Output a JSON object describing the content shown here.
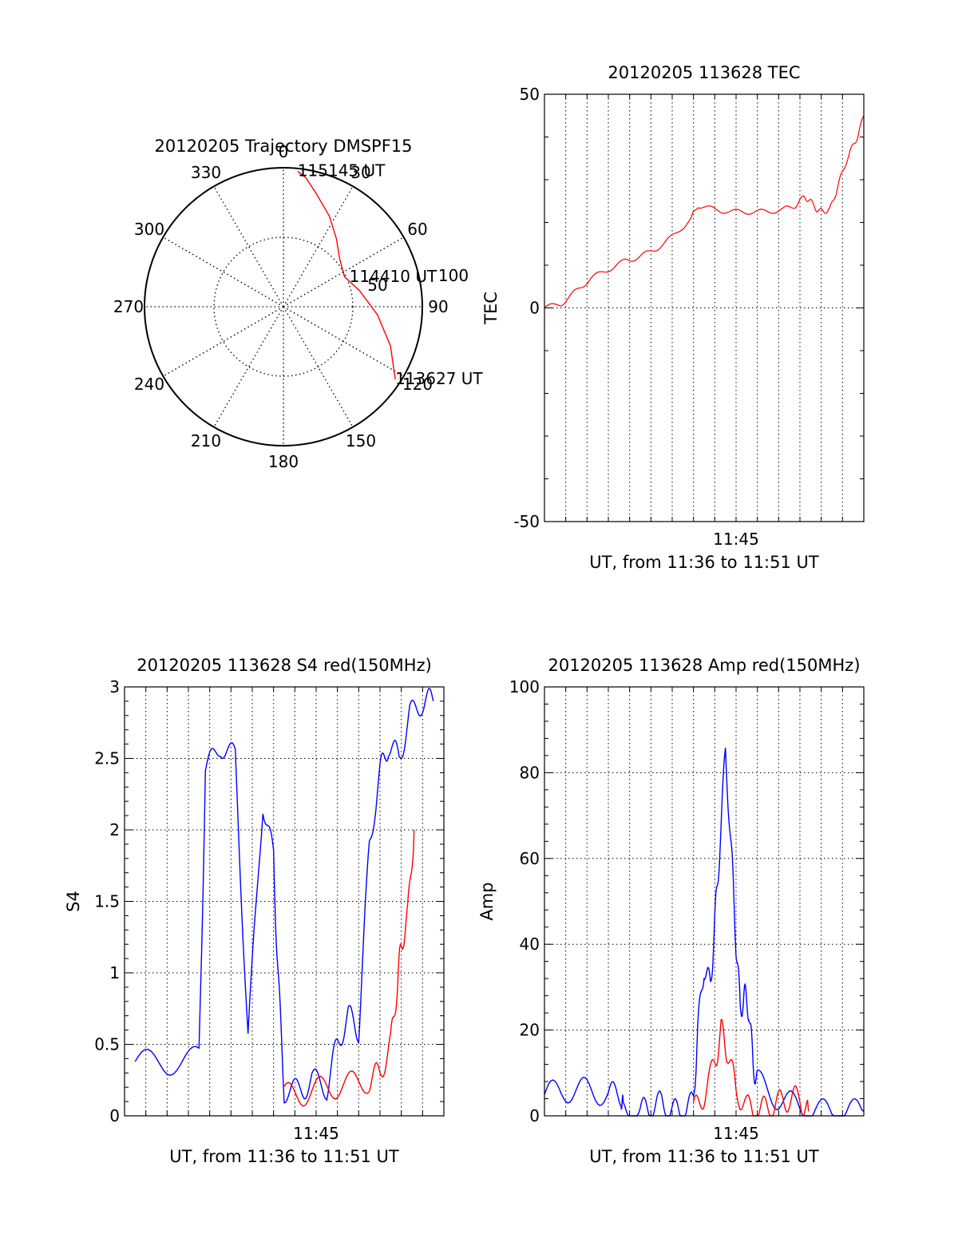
{
  "chart_data": [
    {
      "type": "polar",
      "title": "20120205 Trajectory DMSPF15",
      "azimuth_labels": [
        "0",
        "30",
        "60",
        "90",
        "120",
        "150",
        "180",
        "210",
        "240",
        "270",
        "300",
        "330"
      ],
      "radial_labels": [
        "50",
        "100"
      ],
      "series": [
        {
          "color": "#ff0000",
          "points": [
            {
              "az": 123,
              "el": 4
            },
            {
              "az": 110,
              "el": 18
            },
            {
              "az": 95,
              "el": 32
            },
            {
              "az": 78,
              "el": 44
            },
            {
              "az": 64,
              "el": 51
            },
            {
              "az": 50,
              "el": 47
            },
            {
              "az": 38,
              "el": 38
            },
            {
              "az": 27,
              "el": 27
            },
            {
              "az": 16,
              "el": 15
            },
            {
              "az": 10,
              "el": 6
            },
            {
              "az": 6,
              "el": 2
            }
          ]
        }
      ],
      "annotations": [
        {
          "text": "115145 UT",
          "az": 6,
          "el": 2
        },
        {
          "text": "114410 UT",
          "az": 66,
          "el": 48
        },
        {
          "text": "113627 UT",
          "az": 123,
          "el": 4
        }
      ]
    },
    {
      "type": "line",
      "title": "20120205 113628 TEC",
      "xlabel": "UT, from 11:36 to 11:51 UT",
      "ylabel": "TEC",
      "xlim": [
        0,
        15
      ],
      "ylim": [
        -50,
        50
      ],
      "xticks": [
        {
          "value": 9,
          "label": "11:45"
        }
      ],
      "yticks": [
        -50,
        0,
        50
      ],
      "grid": true,
      "series": [
        {
          "color": "#ff0000",
          "x": [
            0,
            0.8,
            1.5,
            2.2,
            3,
            3.8,
            4.5,
            5.3,
            6.1,
            6.9,
            7.2,
            8,
            8.8,
            9.6,
            10.4,
            11.2,
            11.8,
            12.2,
            12.5,
            12.8,
            13.1,
            13.4,
            13.7,
            14,
            14.4,
            14.7,
            15
          ],
          "y": [
            0,
            1,
            4,
            7,
            9,
            11,
            12,
            14,
            17,
            21,
            24,
            23,
            22.5,
            22.5,
            22.5,
            23,
            24,
            26,
            25,
            23,
            22.5,
            23,
            27,
            32,
            37,
            40,
            45
          ]
        }
      ]
    },
    {
      "type": "line",
      "title": "20120205 113628 S4 red(150MHz)",
      "xlabel": "UT, from 11:36 to 11:51 UT",
      "ylabel": "S4",
      "xlim": [
        0,
        15
      ],
      "ylim": [
        0,
        3
      ],
      "xticks": [
        {
          "value": 9,
          "label": "11:45"
        }
      ],
      "yticks": [
        0,
        0.5,
        1,
        1.5,
        2,
        2.5,
        3
      ],
      "grid": true,
      "series": [
        {
          "color": "#0000ff",
          "x": [
            0.5,
            2,
            3.5,
            3.8,
            4.5,
            5.2,
            5.8,
            6.5,
            7,
            7.2,
            7.5,
            8.2,
            8.8,
            9.5,
            10,
            10.5,
            11,
            11.5,
            12,
            12.4,
            12.9,
            13.4,
            14,
            14.5
          ],
          "y": [
            0.38,
            0.37,
            0.4,
            2.4,
            2.6,
            2.5,
            0.55,
            2.2,
            1.8,
            1.0,
            0.18,
            0.17,
            0.25,
            0.2,
            0.5,
            0.7,
            0.6,
            1.9,
            2.4,
            2.6,
            2.5,
            2.8,
            2.9,
            2.9
          ]
        },
        {
          "color": "#ff0000",
          "x": [
            7.5,
            8.5,
            9.5,
            10.5,
            11.5,
            12,
            12.5,
            12.8,
            13,
            13.3,
            13.6
          ],
          "y": [
            0.14,
            0.16,
            0.2,
            0.22,
            0.25,
            0.3,
            0.5,
            0.9,
            1.2,
            1.4,
            2.0
          ]
        }
      ]
    },
    {
      "type": "line",
      "title": "20120205 113628 Amp red(150MHz)",
      "xlabel": "UT, from 11:36 to 11:51 UT",
      "ylabel": "Amp",
      "xlim": [
        0,
        15
      ],
      "ylim": [
        0,
        100
      ],
      "xticks": [
        {
          "value": 9,
          "label": "11:45"
        }
      ],
      "yticks": [
        0,
        20,
        40,
        60,
        80,
        100
      ],
      "grid": true,
      "series": [
        {
          "color": "#0000ff",
          "x": [
            0,
            1,
            2,
            3,
            3.6,
            3.7,
            4.5,
            5,
            5.5,
            6,
            6.5,
            7,
            7.2,
            7.5,
            7.8,
            8,
            8.2,
            8.5,
            8.8,
            9,
            9.2,
            9.4,
            9.6,
            9.8,
            10,
            11,
            12,
            13,
            14,
            15
          ],
          "y": [
            5,
            6,
            6,
            5,
            5,
            1,
            1,
            2,
            3,
            1,
            1,
            3,
            20,
            35,
            30,
            45,
            60,
            85,
            60,
            40,
            25,
            28,
            25,
            12,
            8,
            4,
            2,
            1,
            1,
            1
          ]
        },
        {
          "color": "#ff0000",
          "x": [
            7,
            7.5,
            8,
            8.3,
            8.6,
            9,
            9.5,
            10,
            10.5,
            11,
            11.5,
            12,
            12.4
          ],
          "y": [
            1,
            5,
            12,
            20,
            15,
            6,
            2,
            1,
            2,
            3,
            4,
            4,
            1
          ]
        }
      ]
    }
  ]
}
